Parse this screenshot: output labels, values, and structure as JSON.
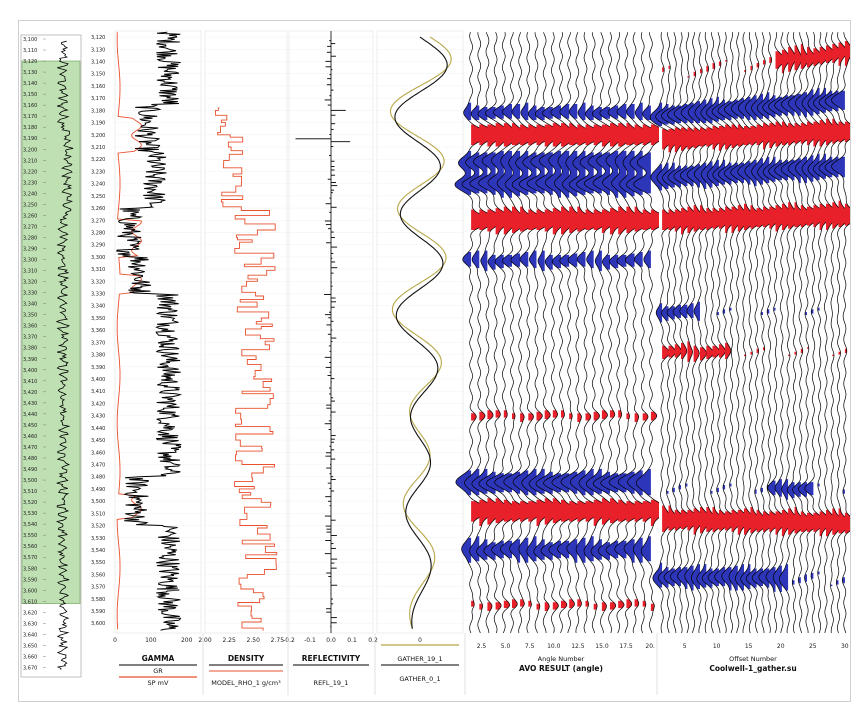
{
  "colors": {
    "zone_fill": "#bfe0b3",
    "zone_border": "#7fb06f",
    "gamma_line": "#000000",
    "density_line": "#e8502e",
    "reflectivity_line": "#000000",
    "gather_19_line": "#111111",
    "gather_0_line": "#b8a84a",
    "positive_fill": "#e8202a",
    "negative_fill": "#2d36b8",
    "trace_line": "#000000"
  },
  "chart_data": [
    {
      "type": "line",
      "name": "depth-overview",
      "depth_ticks": [
        "3,100",
        "3,110",
        "3,120",
        "3,130",
        "3,140",
        "3,150",
        "3,160",
        "3,170",
        "3,180",
        "3,190",
        "3,200",
        "3,210",
        "3,220",
        "3,230",
        "3,240",
        "3,250",
        "3,260",
        "3,270",
        "3,280",
        "3,290",
        "3,300",
        "3,310",
        "3,320",
        "3,330",
        "3,340",
        "3,350",
        "3,360",
        "3,370",
        "3,380",
        "3,390",
        "3,400",
        "3,410",
        "3,420",
        "3,430",
        "3,440",
        "3,450",
        "3,460",
        "3,470",
        "3,480",
        "3,490",
        "3,500",
        "3,510",
        "3,520",
        "3,530",
        "3,540",
        "3,550",
        "3,560",
        "3,570",
        "3,580",
        "3,590",
        "3,600",
        "3,610",
        "3,620",
        "3,630",
        "3,640",
        "3,650",
        "3,660",
        "3,670"
      ],
      "depth_range": [
        3100,
        3675
      ],
      "highlight_range": [
        3120,
        3612
      ]
    },
    {
      "type": "line",
      "name": "gamma",
      "title": "GAMMA",
      "curves": [
        {
          "name": "GR",
          "color": "#000000"
        },
        {
          "name": "SP mV",
          "color": "#000000"
        }
      ],
      "xlim": [
        0,
        240
      ],
      "x_ticks": [
        "0",
        "100",
        "200"
      ],
      "y_ticks": [
        "3,120",
        "3,130",
        "3,140",
        "3,150",
        "3,160",
        "3,170",
        "3,180",
        "3,190",
        "3,200",
        "3,210",
        "3,220",
        "3,230",
        "3,240",
        "3,250",
        "3,260",
        "3,270",
        "3,280",
        "3,290",
        "3,300",
        "3,310",
        "3,320",
        "3,330",
        "3,340",
        "3,350",
        "3,360",
        "3,370",
        "3,380",
        "3,390",
        "3,400",
        "3,410",
        "3,420",
        "3,430",
        "3,440",
        "3,450",
        "3,460",
        "3,470",
        "3,480",
        "3,490",
        "3,500",
        "3,510",
        "3,520",
        "3,530",
        "3,540",
        "3,550",
        "3,560",
        "3,570",
        "3,580",
        "3,590",
        "3,600"
      ],
      "ylim": [
        3115,
        3608
      ]
    },
    {
      "type": "line",
      "name": "density",
      "title": "DENSITY",
      "curves": [
        {
          "name": "MODEL_RHO_1 g/cm³",
          "color": "#e8502e"
        }
      ],
      "xlim": [
        2.0,
        2.85
      ],
      "x_ticks": [
        "2.00",
        "2.25",
        "2.50",
        "2.75"
      ]
    },
    {
      "type": "line",
      "name": "reflectivity",
      "title": "REFLECTIVITY",
      "curves": [
        {
          "name": "REFL_19_1",
          "color": "#000000"
        }
      ],
      "xlim": [
        -0.2,
        0.2
      ],
      "x_ticks": [
        "-0.2",
        "-0.1",
        "0.0",
        "0.1",
        "0.2"
      ]
    },
    {
      "type": "line",
      "name": "gather",
      "curves": [
        {
          "name": "GATHER_19_1",
          "color": "#111111"
        },
        {
          "name": "GATHER_0_1",
          "color": "#b8a84a"
        }
      ],
      "x_ticks": [
        "0"
      ]
    },
    {
      "type": "line",
      "name": "avo-result",
      "title": "AVO RESULT (angle)",
      "xlabel": "Angle Number",
      "x_ticks": [
        "2.5",
        "5.0",
        "7.5",
        "10.0",
        "12.5",
        "15.0",
        "17.5",
        "20."
      ],
      "xlim": [
        1,
        20.5
      ],
      "trace_count": 23
    },
    {
      "type": "line",
      "name": "offset-gather",
      "title": "Coolwell-1_gather.su",
      "xlabel": "Offset Number",
      "x_ticks": [
        "5",
        "10",
        "15",
        "20",
        "25",
        "30"
      ],
      "xlim": [
        1,
        30.5
      ],
      "trace_count": 30
    }
  ]
}
